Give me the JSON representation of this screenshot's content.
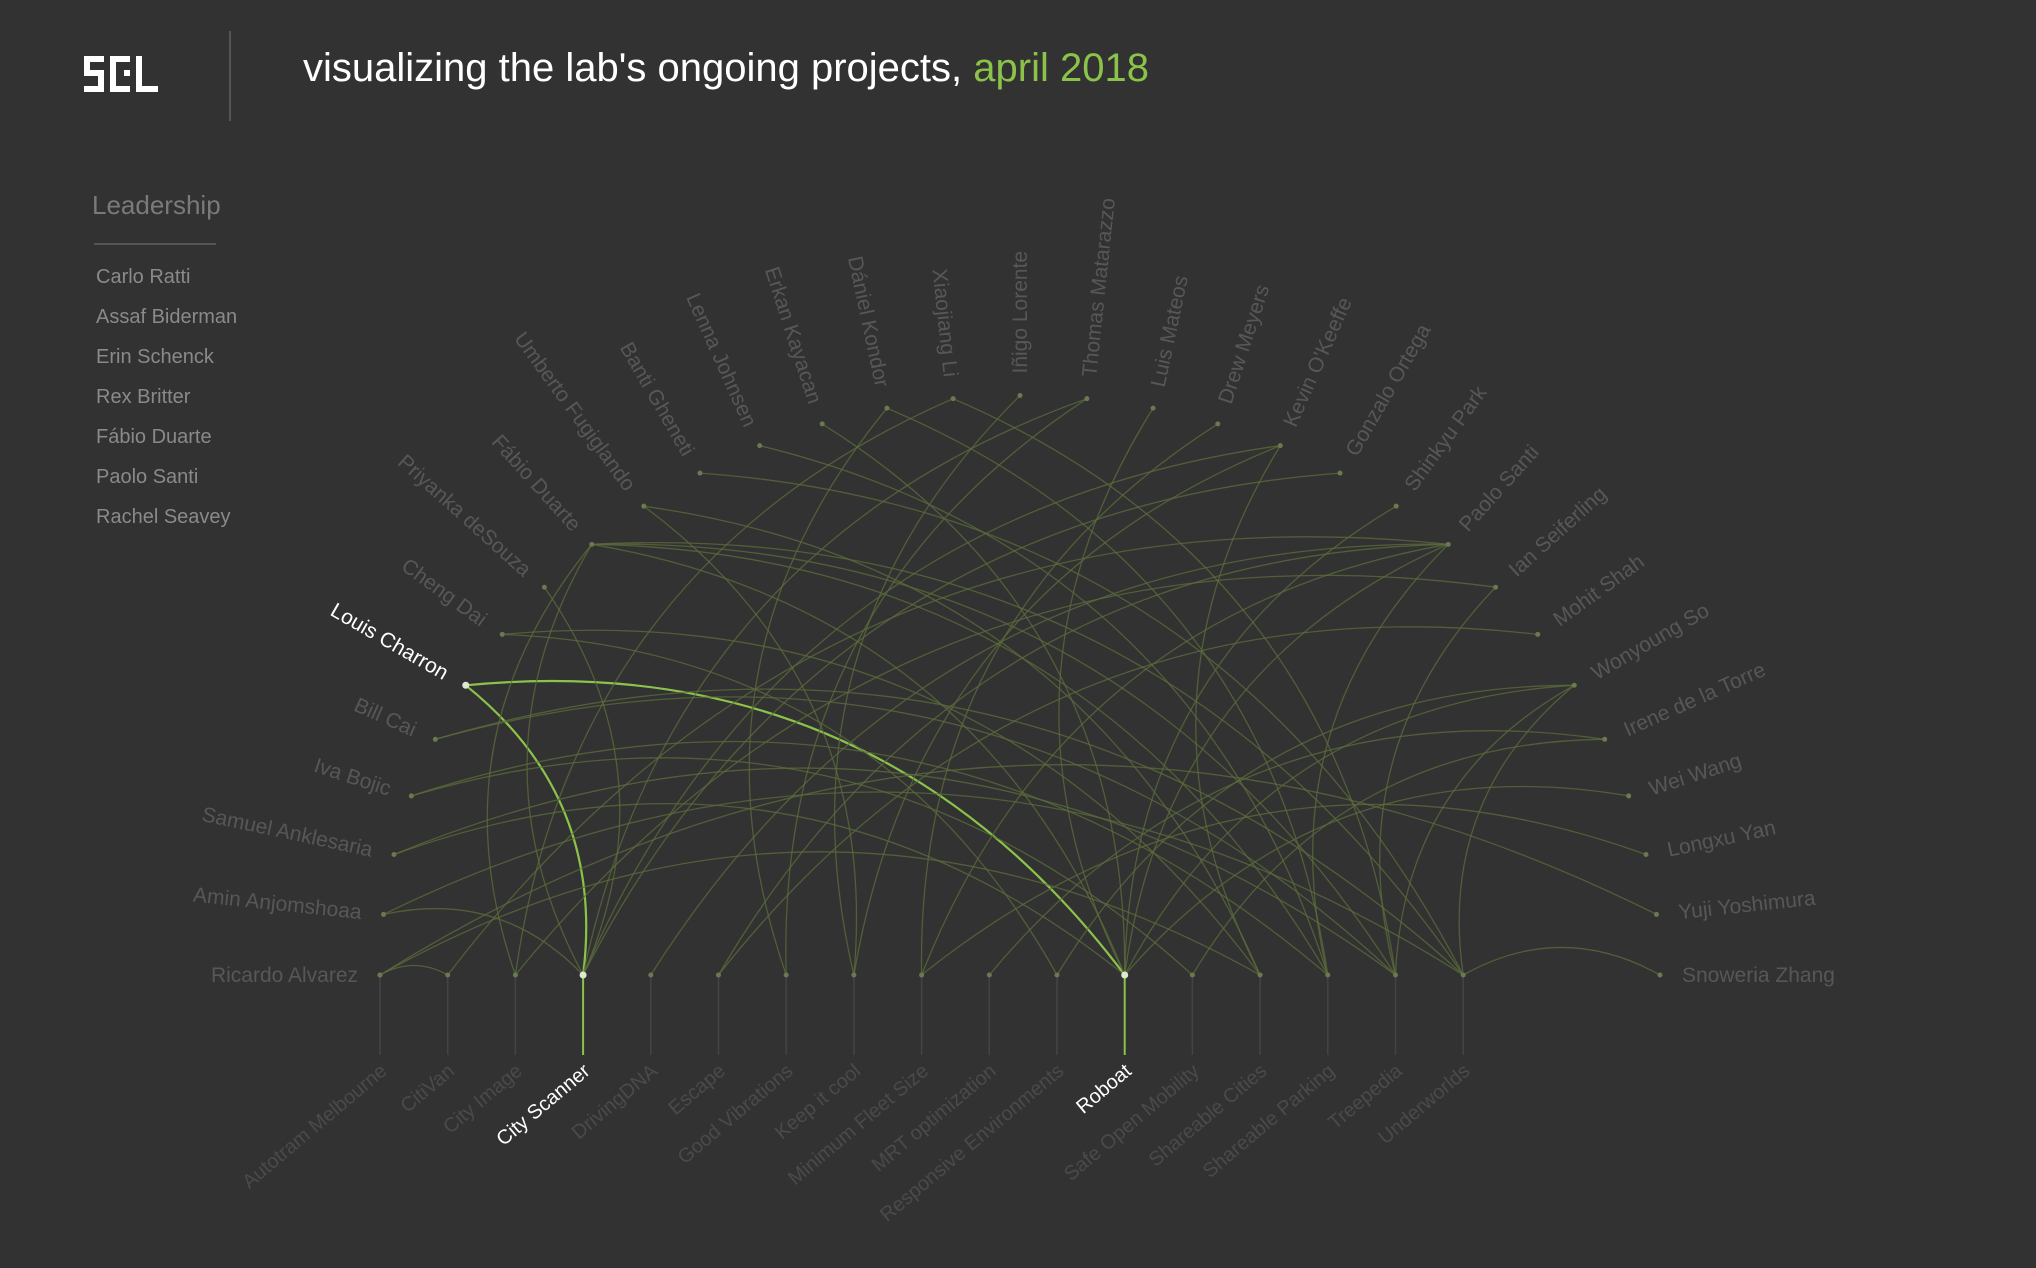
{
  "header": {
    "title_main": "visualizing the lab's ongoing projects,",
    "title_accent": "april 2018",
    "logo_icon": "scl-logo-icon"
  },
  "leadership": {
    "heading": "Leadership",
    "members": [
      "Carlo Ratti",
      "Assaf Biderman",
      "Erin Schenck",
      "Rex Britter",
      "Fábio Duarte",
      "Paolo Santi",
      "Rachel Seavey"
    ]
  },
  "colors": {
    "background": "#323232",
    "accent": "#8bc34a",
    "edge_dim": "#5c6d3c",
    "label_dim": "#5a5a5a",
    "highlight": "#ffffff"
  },
  "graph": {
    "people": [
      "Ricardo Alvarez",
      "Amin Anjomshoaa",
      "Samuel Anklesaria",
      "Iva Bojic",
      "Bill Cai",
      "Louis Charron",
      "Cheng Dai",
      "Priyanka deSouza",
      "Fábio Duarte",
      "Umberto Fugiglando",
      "Banti Gheneti",
      "Lenna Johnsen",
      "Erkan Kayacan",
      "Dániel Kondor",
      "Xiaojiang Li",
      "Iñigo Lorente",
      "Thomas Matarazzo",
      "Luis Mateos",
      "Drew Meyers",
      "Kevin O'Keeffe",
      "Gonzalo Ortega",
      "Shinkyu Park",
      "Paolo Santi",
      "Ian Seiferling",
      "Mohit Shah",
      "Wonyoung So",
      "Irene de la Torre",
      "Wei Wang",
      "Longxu Yan",
      "Yuji Yoshimura",
      "Snoweria Zhang"
    ],
    "projects": [
      "Autotram Melbourne",
      "CitiVan",
      "City Image",
      "City Scanner",
      "DrivingDNA",
      "Escape",
      "Good Vibrations",
      "Keep it cool",
      "Minimum Fleet Size",
      "MRT optimization",
      "Responsive Environments",
      "Roboat",
      "Safe Open Mobility",
      "Shareable Cities",
      "Shareable Parking",
      "Treepedia",
      "Underworlds"
    ],
    "highlighted_person": "Louis Charron",
    "highlighted_projects": [
      "City Scanner",
      "Roboat"
    ],
    "links": [
      [
        "Louis Charron",
        "City Scanner"
      ],
      [
        "Louis Charron",
        "Roboat"
      ],
      [
        "Ricardo Alvarez",
        "Autotram Melbourne"
      ],
      [
        "Ricardo Alvarez",
        "CitiVan"
      ],
      [
        "Ricardo Alvarez",
        "Shareable Cities"
      ],
      [
        "Amin Anjomshoaa",
        "City Scanner"
      ],
      [
        "Amin Anjomshoaa",
        "Underworlds"
      ],
      [
        "Samuel Anklesaria",
        "Roboat"
      ],
      [
        "Samuel Anklesaria",
        "Treepedia"
      ],
      [
        "Iva Bojic",
        "Shareable Parking"
      ],
      [
        "Iva Bojic",
        "Safe Open Mobility"
      ],
      [
        "Bill Cai",
        "Treepedia"
      ],
      [
        "Bill Cai",
        "Underworlds"
      ],
      [
        "Cheng Dai",
        "Responsive Environments"
      ],
      [
        "Cheng Dai",
        "Shareable Cities"
      ],
      [
        "Priyanka deSouza",
        "City Scanner"
      ],
      [
        "Fábio Duarte",
        "City Image"
      ],
      [
        "Fábio Duarte",
        "City Scanner"
      ],
      [
        "Fábio Duarte",
        "Roboat"
      ],
      [
        "Fábio Duarte",
        "Treepedia"
      ],
      [
        "Fábio Duarte",
        "Underworlds"
      ],
      [
        "Fábio Duarte",
        "Shareable Parking"
      ],
      [
        "Umberto Fugiglando",
        "Keep it cool"
      ],
      [
        "Umberto Fugiglando",
        "Shareable Cities"
      ],
      [
        "Banti Gheneti",
        "Underworlds"
      ],
      [
        "Lenna Johnsen",
        "Shareable Parking"
      ],
      [
        "Erkan Kayacan",
        "Roboat"
      ],
      [
        "Dániel Kondor",
        "Shareable Parking"
      ],
      [
        "Dániel Kondor",
        "Good Vibrations"
      ],
      [
        "Xiaojiang Li",
        "Treepedia"
      ],
      [
        "Xiaojiang Li",
        "City Image"
      ],
      [
        "Iñigo Lorente",
        "Keep it cool"
      ],
      [
        "Thomas Matarazzo",
        "Good Vibrations"
      ],
      [
        "Thomas Matarazzo",
        "City Scanner"
      ],
      [
        "Luis Mateos",
        "Roboat"
      ],
      [
        "Drew Meyers",
        "Minimum Fleet Size"
      ],
      [
        "Kevin O'Keeffe",
        "Keep it cool"
      ],
      [
        "Kevin O'Keeffe",
        "City Scanner"
      ],
      [
        "Kevin O'Keeffe",
        "Shareable Cities"
      ],
      [
        "Gonzalo Ortega",
        "City Scanner"
      ],
      [
        "Shinkyu Park",
        "Roboat"
      ],
      [
        "Paolo Santi",
        "Roboat"
      ],
      [
        "Paolo Santi",
        "Minimum Fleet Size"
      ],
      [
        "Paolo Santi",
        "Shareable Parking"
      ],
      [
        "Paolo Santi",
        "CitiVan"
      ],
      [
        "Paolo Santi",
        "DrivingDNA"
      ],
      [
        "Paolo Santi",
        "Escape"
      ],
      [
        "Ian Seiferling",
        "Treepedia"
      ],
      [
        "Ian Seiferling",
        "City Image"
      ],
      [
        "Mohit Shah",
        "Escape"
      ],
      [
        "Wonyoung So",
        "Roboat"
      ],
      [
        "Wonyoung So",
        "Responsive Environments"
      ],
      [
        "Wonyoung So",
        "Treepedia"
      ],
      [
        "Wonyoung So",
        "Underworlds"
      ],
      [
        "Irene de la Torre",
        "MRT optimization"
      ],
      [
        "Irene de la Torre",
        "Safe Open Mobility"
      ],
      [
        "Wei Wang",
        "Roboat"
      ],
      [
        "Longxu Yan",
        "Minimum Fleet Size"
      ],
      [
        "Yuji Yoshimura",
        "Ricardo Alvarez"
      ],
      [
        "Snoweria Zhang",
        "Underworlds"
      ]
    ]
  }
}
